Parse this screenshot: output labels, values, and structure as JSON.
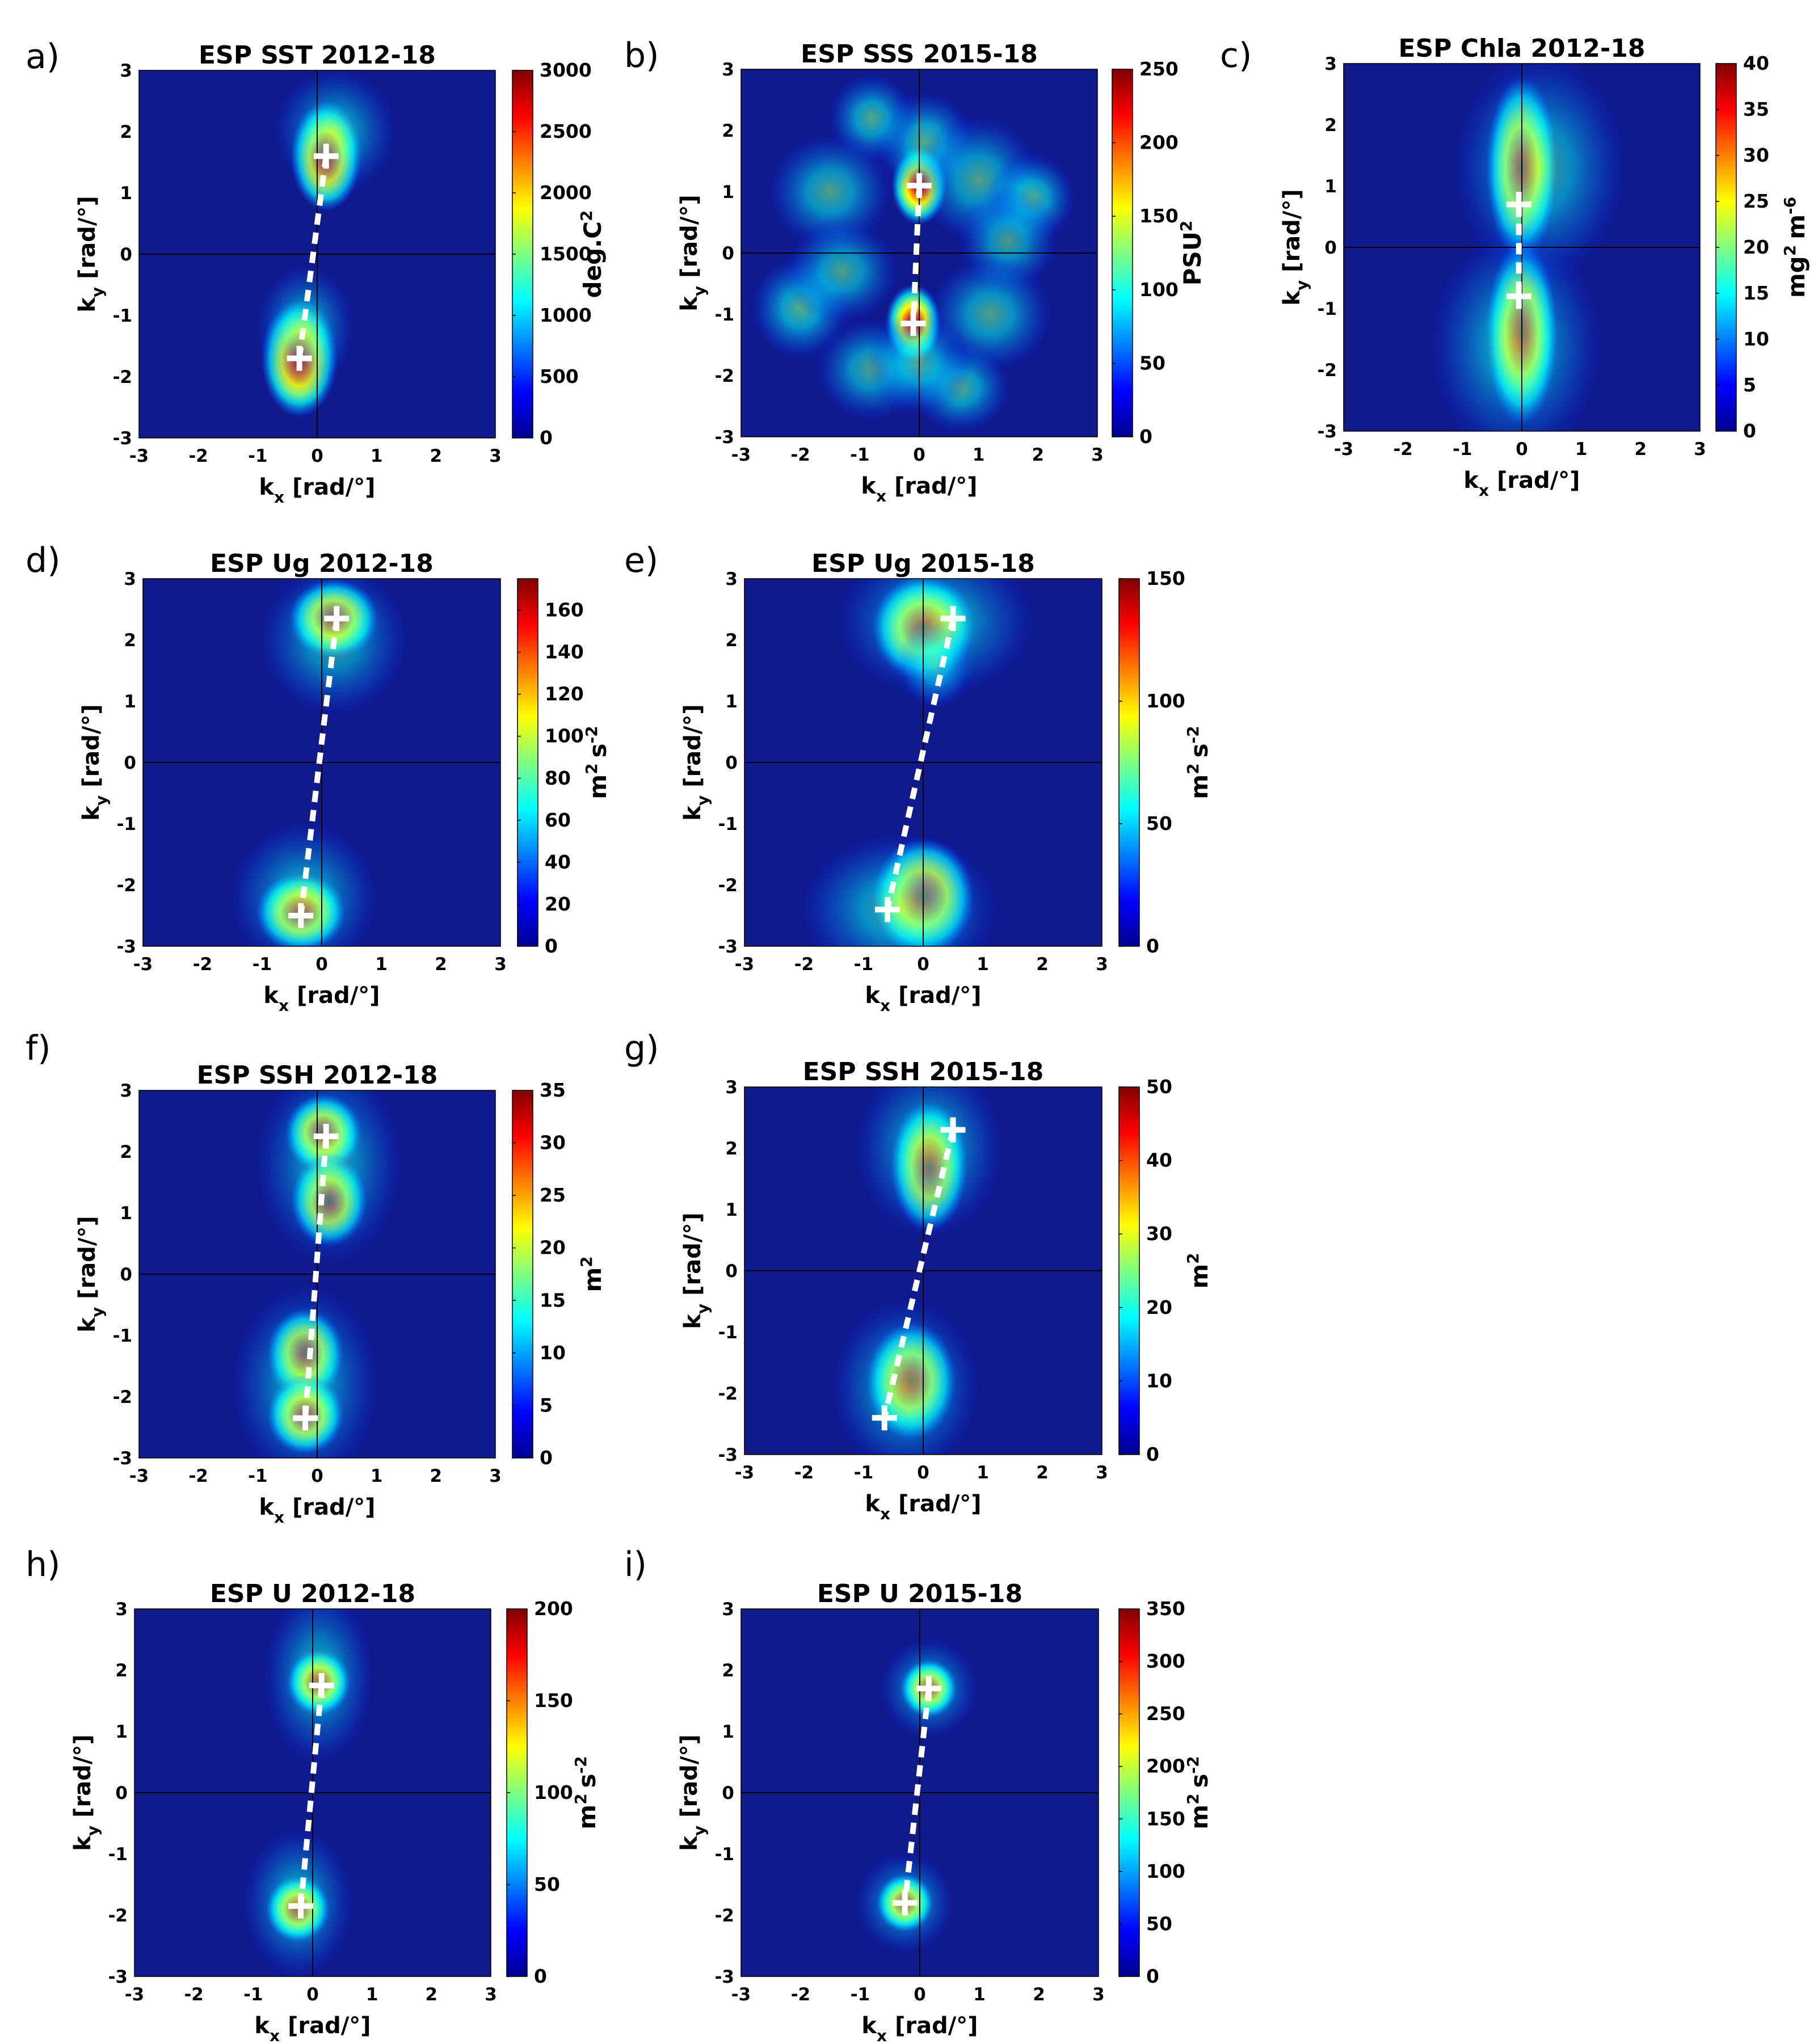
{
  "figure": {
    "description_labels": [
      "a)",
      "b)",
      "c)",
      "d)",
      "e)",
      "f)",
      "g)",
      "h)",
      "i)"
    ]
  },
  "colors": {
    "colormap": [
      "#00008f",
      "#0000ff",
      "#0080ff",
      "#00ffff",
      "#80ff80",
      "#ffff00",
      "#ff8000",
      "#ff0000",
      "#800000"
    ],
    "background_level": "#101a8a",
    "marker": "#ffffff",
    "path": "#ffffff",
    "axis_lines": "#000000"
  },
  "chart_data": [
    {
      "type": "heatmap",
      "id": "a",
      "label": "a)",
      "title": "ESP SST 2012-18",
      "xlabel": "k",
      "xlabel_sub": "x",
      "xlabel_unit": "[rad/°]",
      "ylabel": "k",
      "ylabel_sub": "y",
      "ylabel_unit": "[rad/°]",
      "xlim": [
        -3,
        3
      ],
      "ylim": [
        -3,
        3
      ],
      "xticks": [
        "-3",
        "-2",
        "-1",
        "0",
        "1",
        "2",
        "3"
      ],
      "yticks": [
        "3",
        "2",
        "1",
        "0",
        "-1",
        "-2",
        "-3"
      ],
      "colorbar": {
        "min": 0,
        "max": 3000,
        "ticks": [
          "3000",
          "2500",
          "2000",
          "1500",
          "1000",
          "500",
          "0"
        ],
        "label": "deg.C",
        "label_sup": "2"
      },
      "blobs": [
        {
          "x": 0.15,
          "y": 1.6,
          "sx": 0.28,
          "sy": 0.42,
          "a": 1.0
        },
        {
          "x": -0.3,
          "y": -1.7,
          "sx": 0.3,
          "sy": 0.45,
          "a": 1.0
        },
        {
          "x": 0.3,
          "y": 2.0,
          "sx": 0.5,
          "sy": 0.5,
          "a": 0.35
        },
        {
          "x": -0.2,
          "y": -1.2,
          "sx": 0.4,
          "sy": 0.5,
          "a": 0.35
        }
      ],
      "markers": [
        {
          "x": 0.15,
          "y": 1.6
        },
        {
          "x": -0.3,
          "y": -1.7
        }
      ]
    },
    {
      "type": "heatmap",
      "id": "b",
      "label": "b)",
      "title": "ESP SSS 2015-18",
      "xlabel": "k",
      "xlabel_sub": "x",
      "xlabel_unit": "[rad/°]",
      "ylabel": "k",
      "ylabel_sub": "y",
      "ylabel_unit": "[rad/°]",
      "xlim": [
        -3,
        3
      ],
      "ylim": [
        -3,
        3
      ],
      "xticks": [
        "-3",
        "-2",
        "-1",
        "0",
        "1",
        "2",
        "3"
      ],
      "yticks": [
        "3",
        "2",
        "1",
        "0",
        "-1",
        "-2",
        "-3"
      ],
      "colorbar": {
        "min": 0,
        "max": 250,
        "ticks": [
          "250",
          "200",
          "150",
          "100",
          "50",
          "0"
        ],
        "label": "PSU",
        "label_sup": "2"
      },
      "blobs": [
        {
          "x": 0.0,
          "y": 1.1,
          "sx": 0.22,
          "sy": 0.3,
          "a": 1.0
        },
        {
          "x": -0.1,
          "y": -1.15,
          "sx": 0.22,
          "sy": 0.3,
          "a": 1.0
        },
        {
          "x": 0.1,
          "y": 1.8,
          "sx": 0.4,
          "sy": 0.4,
          "a": 0.55
        },
        {
          "x": -0.8,
          "y": 2.2,
          "sx": 0.35,
          "sy": 0.35,
          "a": 0.5
        },
        {
          "x": -1.5,
          "y": 1.0,
          "sx": 0.5,
          "sy": 0.45,
          "a": 0.45
        },
        {
          "x": 1.0,
          "y": 1.2,
          "sx": 0.5,
          "sy": 0.5,
          "a": 0.45
        },
        {
          "x": 1.9,
          "y": 0.9,
          "sx": 0.35,
          "sy": 0.35,
          "a": 0.55
        },
        {
          "x": 1.5,
          "y": 0.2,
          "sx": 0.4,
          "sy": 0.4,
          "a": 0.4
        },
        {
          "x": -2.0,
          "y": -0.9,
          "sx": 0.4,
          "sy": 0.4,
          "a": 0.55
        },
        {
          "x": -1.3,
          "y": -0.3,
          "sx": 0.45,
          "sy": 0.4,
          "a": 0.45
        },
        {
          "x": 1.2,
          "y": -1.0,
          "sx": 0.5,
          "sy": 0.45,
          "a": 0.45
        },
        {
          "x": 0.7,
          "y": -2.2,
          "sx": 0.4,
          "sy": 0.35,
          "a": 0.5
        },
        {
          "x": -0.8,
          "y": -1.9,
          "sx": 0.45,
          "sy": 0.4,
          "a": 0.45
        },
        {
          "x": 0.0,
          "y": -1.8,
          "sx": 0.4,
          "sy": 0.4,
          "a": 0.5
        }
      ],
      "markers": [
        {
          "x": 0.0,
          "y": 1.1
        },
        {
          "x": -0.1,
          "y": -1.15
        }
      ]
    },
    {
      "type": "heatmap",
      "id": "c",
      "label": "c)",
      "title": "ESP Chla 2012-18",
      "xlabel": "k",
      "xlabel_sub": "x",
      "xlabel_unit": "[rad/°]",
      "ylabel": "k",
      "ylabel_sub": "y",
      "ylabel_unit": "[rad/°]",
      "xlim": [
        -3,
        3
      ],
      "ylim": [
        -3,
        3
      ],
      "xticks": [
        "-3",
        "-2",
        "-1",
        "0",
        "1",
        "2",
        "3"
      ],
      "yticks": [
        "3",
        "2",
        "1",
        "0",
        "-1",
        "-2",
        "-3"
      ],
      "colorbar": {
        "min": 0,
        "max": 40,
        "ticks": [
          "40",
          "35",
          "30",
          "25",
          "20",
          "15",
          "10",
          "5",
          "0"
        ],
        "label": "mg",
        "label_sup": "2",
        "label2": "m",
        "label2_sup": "-6"
      },
      "blobs": [
        {
          "x": 0.0,
          "y": 1.3,
          "sx": 0.28,
          "sy": 0.7,
          "a": 1.0
        },
        {
          "x": 0.0,
          "y": -1.4,
          "sx": 0.28,
          "sy": 0.7,
          "a": 1.0
        },
        {
          "x": 0.3,
          "y": 1.3,
          "sx": 0.7,
          "sy": 0.9,
          "a": 0.4
        },
        {
          "x": -0.1,
          "y": -1.6,
          "sx": 0.7,
          "sy": 0.9,
          "a": 0.4
        }
      ],
      "markers": [
        {
          "x": -0.05,
          "y": 0.7
        },
        {
          "x": -0.05,
          "y": -0.8
        }
      ]
    },
    {
      "type": "heatmap",
      "id": "d",
      "label": "d)",
      "title": "ESP Ug 2012-18",
      "xlabel": "k",
      "xlabel_sub": "x",
      "xlabel_unit": "[rad/°]",
      "ylabel": "k",
      "ylabel_sub": "y",
      "ylabel_unit": "[rad/°]",
      "xlim": [
        -3,
        3
      ],
      "ylim": [
        -3,
        3
      ],
      "xticks": [
        "-3",
        "-2",
        "-1",
        "0",
        "1",
        "2",
        "3"
      ],
      "yticks": [
        "3",
        "2",
        "1",
        "0",
        "-1",
        "-2",
        "-3"
      ],
      "colorbar": {
        "min": 0,
        "max": 175,
        "ticks": [
          "160",
          "140",
          "120",
          "100",
          "80",
          "60",
          "40",
          "20",
          "0"
        ],
        "tick_values": [
          160,
          140,
          120,
          100,
          80,
          60,
          40,
          20,
          0
        ],
        "label": "m",
        "label_sup": "2",
        "label2": "s",
        "label2_sup": "-2"
      },
      "blobs": [
        {
          "x": 0.2,
          "y": 2.35,
          "sx": 0.35,
          "sy": 0.3,
          "a": 1.0
        },
        {
          "x": -0.35,
          "y": -2.45,
          "sx": 0.35,
          "sy": 0.3,
          "a": 1.0
        },
        {
          "x": 0.2,
          "y": 2.0,
          "sx": 0.6,
          "sy": 0.6,
          "a": 0.35
        },
        {
          "x": -0.3,
          "y": -2.2,
          "sx": 0.6,
          "sy": 0.6,
          "a": 0.35
        }
      ],
      "markers": [
        {
          "x": 0.25,
          "y": 2.35
        },
        {
          "x": -0.35,
          "y": -2.5
        }
      ]
    },
    {
      "type": "heatmap",
      "id": "e",
      "label": "e)",
      "title": "ESP Ug 2015-18",
      "xlabel": "k",
      "xlabel_sub": "x",
      "xlabel_unit": "[rad/°]",
      "ylabel": "k",
      "ylabel_sub": "y",
      "ylabel_unit": "[rad/°]",
      "xlim": [
        -3,
        3
      ],
      "ylim": [
        -3,
        3
      ],
      "xticks": [
        "-3",
        "-2",
        "-1",
        "0",
        "1",
        "2",
        "3"
      ],
      "yticks": [
        "3",
        "2",
        "1",
        "0",
        "-1",
        "-2",
        "-3"
      ],
      "colorbar": {
        "min": 0,
        "max": 150,
        "ticks": [
          "150",
          "100",
          "50",
          "0"
        ],
        "label": "m",
        "label_sup": "2",
        "label2": "s",
        "label2_sup": "-2"
      },
      "blobs": [
        {
          "x": 0.0,
          "y": 2.2,
          "sx": 0.4,
          "sy": 0.4,
          "a": 1.0
        },
        {
          "x": 0.0,
          "y": -2.2,
          "sx": 0.4,
          "sy": 0.45,
          "a": 1.0
        },
        {
          "x": 0.2,
          "y": 1.6,
          "sx": 0.3,
          "sy": 0.35,
          "a": 0.6
        },
        {
          "x": 0.2,
          "y": 2.3,
          "sx": 0.8,
          "sy": 0.6,
          "a": 0.4
        },
        {
          "x": -0.4,
          "y": -2.4,
          "sx": 0.8,
          "sy": 0.6,
          "a": 0.45
        }
      ],
      "markers": [
        {
          "x": 0.5,
          "y": 2.35
        },
        {
          "x": -0.6,
          "y": -2.4
        }
      ]
    },
    {
      "type": "heatmap",
      "id": "f",
      "label": "f)",
      "title": "ESP SSH 2012-18",
      "xlabel": "k",
      "xlabel_sub": "x",
      "xlabel_unit": "[rad/°]",
      "ylabel": "k",
      "ylabel_sub": "y",
      "ylabel_unit": "[rad/°]",
      "xlim": [
        -3,
        3
      ],
      "ylim": [
        -3,
        3
      ],
      "xticks": [
        "-3",
        "-2",
        "-1",
        "0",
        "1",
        "2",
        "3"
      ],
      "yticks": [
        "3",
        "2",
        "1",
        "0",
        "-1",
        "-2",
        "-3"
      ],
      "colorbar": {
        "min": 0,
        "max": 35,
        "ticks": [
          "35",
          "30",
          "25",
          "20",
          "15",
          "10",
          "5",
          "0"
        ],
        "label": "m",
        "label_sup": "2"
      },
      "blobs": [
        {
          "x": 0.1,
          "y": 2.3,
          "sx": 0.3,
          "sy": 0.3,
          "a": 1.0
        },
        {
          "x": 0.2,
          "y": 1.2,
          "sx": 0.3,
          "sy": 0.35,
          "a": 0.9
        },
        {
          "x": -0.2,
          "y": -1.3,
          "sx": 0.3,
          "sy": 0.35,
          "a": 0.9
        },
        {
          "x": -0.2,
          "y": -2.3,
          "sx": 0.3,
          "sy": 0.3,
          "a": 1.0
        },
        {
          "x": 0.2,
          "y": 1.8,
          "sx": 0.6,
          "sy": 0.8,
          "a": 0.35
        },
        {
          "x": -0.2,
          "y": -1.8,
          "sx": 0.6,
          "sy": 0.8,
          "a": 0.35
        }
      ],
      "markers": [
        {
          "x": 0.15,
          "y": 2.25
        },
        {
          "x": -0.2,
          "y": -2.35
        }
      ]
    },
    {
      "type": "heatmap",
      "id": "g",
      "label": "g)",
      "title": "ESP SSH 2015-18",
      "xlabel": "k",
      "xlabel_sub": "x",
      "xlabel_unit": "[rad/°]",
      "ylabel": "k",
      "ylabel_sub": "y",
      "ylabel_unit": "[rad/°]",
      "xlim": [
        -3,
        3
      ],
      "ylim": [
        -3,
        3
      ],
      "xticks": [
        "-3",
        "-2",
        "-1",
        "0",
        "1",
        "2",
        "3"
      ],
      "yticks": [
        "3",
        "2",
        "1",
        "0",
        "-1",
        "-2",
        "-3"
      ],
      "colorbar": {
        "min": 0,
        "max": 50,
        "ticks": [
          "50",
          "40",
          "30",
          "20",
          "10",
          "0"
        ],
        "label": "m",
        "label_sup": "2"
      },
      "blobs": [
        {
          "x": 0.1,
          "y": 1.7,
          "sx": 0.3,
          "sy": 0.5,
          "a": 0.9
        },
        {
          "x": -0.2,
          "y": -1.8,
          "sx": 0.35,
          "sy": 0.45,
          "a": 0.9
        },
        {
          "x": 0.1,
          "y": 2.0,
          "sx": 0.6,
          "sy": 0.7,
          "a": 0.4
        },
        {
          "x": -0.3,
          "y": -1.9,
          "sx": 0.6,
          "sy": 0.7,
          "a": 0.4
        }
      ],
      "markers": [
        {
          "x": 0.5,
          "y": 2.3
        },
        {
          "x": -0.65,
          "y": -2.4
        }
      ]
    },
    {
      "type": "heatmap",
      "id": "h",
      "label": "h)",
      "title": "ESP U 2012-18",
      "xlabel": "k",
      "xlabel_sub": "x",
      "xlabel_unit": "[rad/°]",
      "ylabel": "k",
      "ylabel_sub": "y",
      "ylabel_unit": "[rad/°]",
      "xlim": [
        -3,
        3
      ],
      "ylim": [
        -3,
        3
      ],
      "xticks": [
        "-3",
        "-2",
        "-1",
        "0",
        "1",
        "2",
        "3"
      ],
      "yticks": [
        "3",
        "2",
        "1",
        "0",
        "-1",
        "-2",
        "-3"
      ],
      "colorbar": {
        "min": 0,
        "max": 200,
        "ticks": [
          "200",
          "150",
          "100",
          "50",
          "0"
        ],
        "label": "m",
        "label_sup": "2",
        "label2": "s",
        "label2_sup": "-2"
      },
      "blobs": [
        {
          "x": 0.1,
          "y": 1.8,
          "sx": 0.25,
          "sy": 0.25,
          "a": 1.0
        },
        {
          "x": -0.25,
          "y": -1.9,
          "sx": 0.25,
          "sy": 0.25,
          "a": 1.0
        },
        {
          "x": 0.1,
          "y": 1.9,
          "sx": 0.45,
          "sy": 0.7,
          "a": 0.35
        },
        {
          "x": -0.25,
          "y": -1.8,
          "sx": 0.45,
          "sy": 0.6,
          "a": 0.35
        }
      ],
      "markers": [
        {
          "x": 0.15,
          "y": 1.75
        },
        {
          "x": -0.2,
          "y": -1.85
        }
      ]
    },
    {
      "type": "heatmap",
      "id": "i",
      "label": "i)",
      "title": "ESP U 2015-18",
      "xlabel": "k",
      "xlabel_sub": "x",
      "xlabel_unit": "[rad/°]",
      "ylabel": "k",
      "ylabel_sub": "y",
      "ylabel_unit": "[rad/°]",
      "xlim": [
        -3,
        3
      ],
      "ylim": [
        -3,
        3
      ],
      "xticks": [
        "-3",
        "-2",
        "-1",
        "0",
        "1",
        "2",
        "3"
      ],
      "yticks": [
        "3",
        "2",
        "1",
        "0",
        "-1",
        "-2",
        "-3"
      ],
      "colorbar": {
        "min": 0,
        "max": 350,
        "ticks": [
          "350",
          "300",
          "250",
          "200",
          "150",
          "100",
          "50",
          "0"
        ],
        "label": "m",
        "label_sup": "2",
        "label2": "s",
        "label2_sup": "-2"
      },
      "blobs": [
        {
          "x": 0.15,
          "y": 1.7,
          "sx": 0.22,
          "sy": 0.22,
          "a": 1.0
        },
        {
          "x": -0.25,
          "y": -1.8,
          "sx": 0.22,
          "sy": 0.22,
          "a": 1.0
        },
        {
          "x": 0.15,
          "y": 1.7,
          "sx": 0.4,
          "sy": 0.4,
          "a": 0.35
        },
        {
          "x": -0.25,
          "y": -1.8,
          "sx": 0.4,
          "sy": 0.4,
          "a": 0.35
        }
      ],
      "markers": [
        {
          "x": 0.15,
          "y": 1.7
        },
        {
          "x": -0.25,
          "y": -1.8
        }
      ]
    }
  ]
}
